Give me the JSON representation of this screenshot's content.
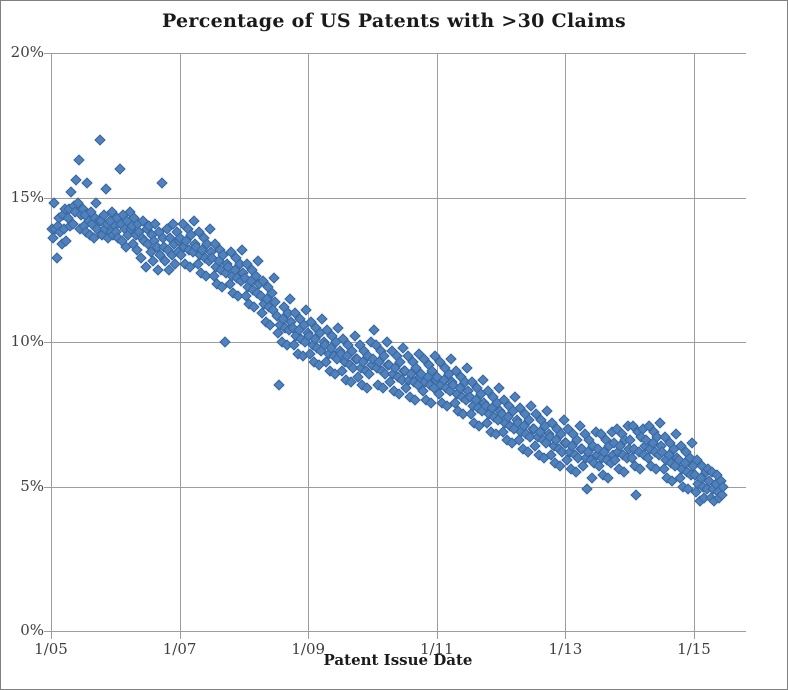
{
  "chart_data": {
    "type": "scatter",
    "title": "Percentage of US Patents with >30 Claims",
    "xlabel": "Patent Issue Date",
    "ylabel": "",
    "ylim": [
      0,
      20
    ],
    "xlim_years": [
      2005,
      2015.81
    ],
    "grid": true,
    "legend": "none",
    "y_ticks": [
      {
        "label": "0%",
        "value": 0
      },
      {
        "label": "5%",
        "value": 5
      },
      {
        "label": "10%",
        "value": 10
      },
      {
        "label": "15%",
        "value": 15
      },
      {
        "label": "20%",
        "value": 20
      }
    ],
    "x_ticks": [
      {
        "label": "1/05",
        "year": 2005
      },
      {
        "label": "1/07",
        "year": 2007
      },
      {
        "label": "1/09",
        "year": 2009
      },
      {
        "label": "1/11",
        "year": 2011
      },
      {
        "label": "1/13",
        "year": 2013
      },
      {
        "label": "1/15",
        "year": 2015
      }
    ],
    "colors": {
      "marker": "#4F81BD",
      "marker_border": "#3A679E",
      "gridline": "#9d9d9d",
      "axis_text": "#3f3f3f",
      "title_text": "#1a1a1a",
      "chart_border": "#808080",
      "background": "#FFFFFF"
    },
    "series": [
      {
        "name": "Percent of US patents issued with more than 30 claims",
        "cadence": "weekly",
        "x_start_year": 2005.0,
        "x_step_years": 0.01923,
        "values": [
          13.9,
          13.6,
          14.8,
          13.9,
          12.9,
          14.0,
          14.3,
          13.8,
          13.4,
          14.4,
          13.9,
          14.6,
          13.5,
          14.3,
          14.6,
          14.0,
          15.2,
          14.1,
          14.7,
          14.5,
          15.6,
          14.8,
          16.3,
          13.9,
          14.4,
          14.6,
          14.0,
          14.4,
          13.8,
          15.5,
          14.2,
          13.7,
          14.5,
          14.1,
          13.6,
          14.3,
          14.8,
          13.9,
          14.2,
          17.0,
          14.2,
          13.7,
          14.4,
          13.9,
          15.3,
          14.1,
          13.6,
          14.2,
          13.8,
          14.5,
          13.7,
          14.0,
          13.8,
          14.3,
          13.6,
          16.0,
          14.1,
          13.5,
          14.4,
          13.9,
          13.3,
          14.2,
          13.7,
          14.5,
          13.9,
          14.0,
          13.4,
          14.3,
          13.7,
          13.2,
          14.1,
          13.8,
          12.9,
          13.6,
          14.2,
          13.5,
          12.6,
          13.9,
          13.4,
          14.0,
          13.1,
          13.7,
          12.8,
          13.5,
          14.1,
          13.3,
          12.5,
          13.8,
          13.0,
          15.5,
          13.6,
          13.3,
          12.8,
          13.9,
          13.2,
          12.5,
          13.6,
          13.0,
          14.1,
          13.4,
          12.7,
          13.8,
          13.1,
          13.5,
          13.6,
          13.0,
          14.1,
          13.3,
          12.7,
          13.5,
          13.9,
          13.2,
          12.6,
          13.7,
          13.1,
          14.2,
          13.4,
          13.3,
          12.7,
          13.8,
          13.0,
          12.4,
          13.2,
          13.6,
          12.9,
          12.3,
          13.4,
          12.8,
          13.9,
          13.1,
          12.9,
          12.3,
          13.4,
          12.6,
          12.0,
          12.8,
          13.2,
          12.5,
          11.9,
          13.0,
          10.0,
          12.4,
          12.7,
          12.6,
          12.0,
          13.1,
          12.3,
          11.7,
          12.5,
          12.9,
          12.2,
          11.6,
          12.7,
          12.1,
          13.2,
          12.4,
          12.2,
          11.6,
          12.7,
          11.9,
          11.3,
          12.1,
          12.5,
          11.8,
          11.2,
          12.3,
          11.7,
          12.8,
          12.0,
          11.6,
          11.0,
          12.1,
          11.3,
          10.7,
          11.5,
          11.9,
          11.2,
          10.6,
          11.7,
          11.1,
          12.2,
          11.4,
          10.9,
          10.3,
          8.5,
          10.6,
          10.0,
          10.8,
          11.2,
          10.5,
          9.9,
          11.0,
          10.4,
          11.5,
          10.7,
          10.5,
          9.9,
          11.0,
          10.2,
          9.6,
          10.4,
          10.8,
          10.1,
          9.5,
          10.6,
          10.0,
          11.1,
          10.3,
          10.2,
          9.6,
          10.7,
          9.9,
          9.3,
          10.1,
          10.5,
          9.8,
          9.2,
          10.3,
          9.7,
          10.8,
          10.0,
          9.9,
          9.3,
          10.4,
          9.6,
          9.0,
          9.8,
          10.2,
          9.5,
          8.9,
          10.0,
          9.4,
          10.5,
          9.7,
          9.6,
          9.0,
          10.1,
          9.3,
          8.7,
          9.5,
          9.9,
          9.2,
          8.6,
          9.7,
          9.1,
          10.2,
          9.4,
          9.4,
          8.8,
          9.9,
          9.1,
          8.5,
          9.3,
          9.7,
          9.0,
          8.4,
          9.5,
          8.9,
          10.0,
          9.2,
          9.4,
          10.4,
          9.9,
          9.1,
          8.5,
          9.3,
          9.7,
          9.0,
          8.4,
          9.5,
          8.9,
          10.0,
          9.2,
          9.2,
          8.6,
          9.7,
          8.9,
          8.3,
          9.1,
          9.5,
          8.8,
          8.2,
          9.3,
          8.7,
          9.8,
          9.0,
          9.0,
          8.4,
          9.5,
          8.7,
          8.1,
          8.9,
          9.3,
          8.6,
          8.0,
          9.1,
          8.5,
          9.6,
          8.8,
          8.9,
          8.3,
          9.4,
          8.6,
          8.0,
          8.8,
          9.2,
          8.5,
          7.9,
          9.0,
          8.4,
          9.5,
          8.7,
          8.8,
          8.2,
          9.3,
          8.5,
          7.9,
          8.7,
          9.1,
          8.4,
          7.8,
          8.9,
          8.3,
          9.4,
          8.6,
          8.5,
          7.9,
          9.0,
          8.2,
          7.6,
          8.4,
          8.8,
          8.1,
          7.5,
          8.6,
          8.0,
          9.1,
          8.3,
          8.1,
          7.5,
          8.6,
          7.8,
          7.2,
          8.0,
          8.4,
          7.7,
          7.1,
          8.2,
          7.6,
          8.7,
          7.9,
          7.8,
          7.2,
          8.3,
          7.5,
          6.9,
          7.7,
          8.1,
          7.4,
          6.8,
          7.9,
          7.3,
          8.4,
          7.6,
          7.5,
          6.9,
          8.0,
          7.2,
          6.6,
          7.4,
          7.8,
          7.1,
          6.5,
          7.6,
          7.0,
          8.1,
          7.3,
          7.2,
          6.6,
          7.7,
          6.9,
          6.3,
          7.1,
          7.5,
          6.8,
          6.2,
          7.3,
          6.7,
          7.8,
          7.0,
          7.0,
          6.4,
          7.5,
          6.7,
          6.1,
          6.9,
          7.3,
          6.6,
          6.0,
          7.1,
          6.5,
          7.6,
          6.8,
          6.7,
          6.1,
          7.2,
          6.4,
          5.8,
          6.6,
          7.0,
          6.3,
          5.7,
          6.8,
          6.2,
          7.3,
          6.5,
          6.5,
          5.9,
          7.0,
          6.2,
          5.6,
          6.4,
          6.8,
          6.1,
          5.5,
          6.6,
          6.0,
          7.1,
          6.3,
          6.3,
          5.7,
          6.8,
          6.0,
          4.9,
          6.2,
          6.6,
          5.9,
          5.3,
          6.4,
          5.8,
          6.9,
          6.1,
          6.3,
          5.7,
          6.8,
          6.0,
          5.4,
          6.2,
          6.6,
          5.9,
          5.3,
          6.4,
          5.8,
          6.9,
          6.1,
          6.5,
          5.9,
          7.0,
          6.2,
          5.6,
          6.4,
          6.8,
          6.1,
          5.5,
          6.6,
          6.0,
          7.1,
          6.3,
          6.6,
          6.0,
          7.1,
          6.3,
          5.7,
          4.7,
          6.9,
          6.2,
          5.6,
          6.7,
          7.0,
          6.1,
          6.4,
          6.6,
          6.0,
          7.1,
          6.3,
          5.7,
          6.5,
          6.9,
          6.2,
          5.6,
          6.7,
          6.1,
          7.2,
          6.4,
          6.2,
          5.6,
          6.7,
          5.9,
          5.3,
          6.1,
          6.5,
          5.8,
          5.2,
          6.3,
          5.7,
          6.8,
          6.0,
          5.9,
          5.3,
          6.4,
          5.6,
          5.0,
          5.8,
          6.2,
          5.5,
          4.9,
          6.0,
          5.4,
          6.5,
          5.7,
          5.4,
          4.8,
          5.9,
          5.1,
          4.5,
          5.3,
          5.7,
          5.0,
          4.6,
          5.5,
          4.9,
          5.6,
          5.2,
          4.6,
          5.5,
          4.9,
          4.5,
          5.1,
          5.4,
          4.8,
          4.6,
          5.2,
          4.7,
          5.0
        ]
      }
    ]
  }
}
